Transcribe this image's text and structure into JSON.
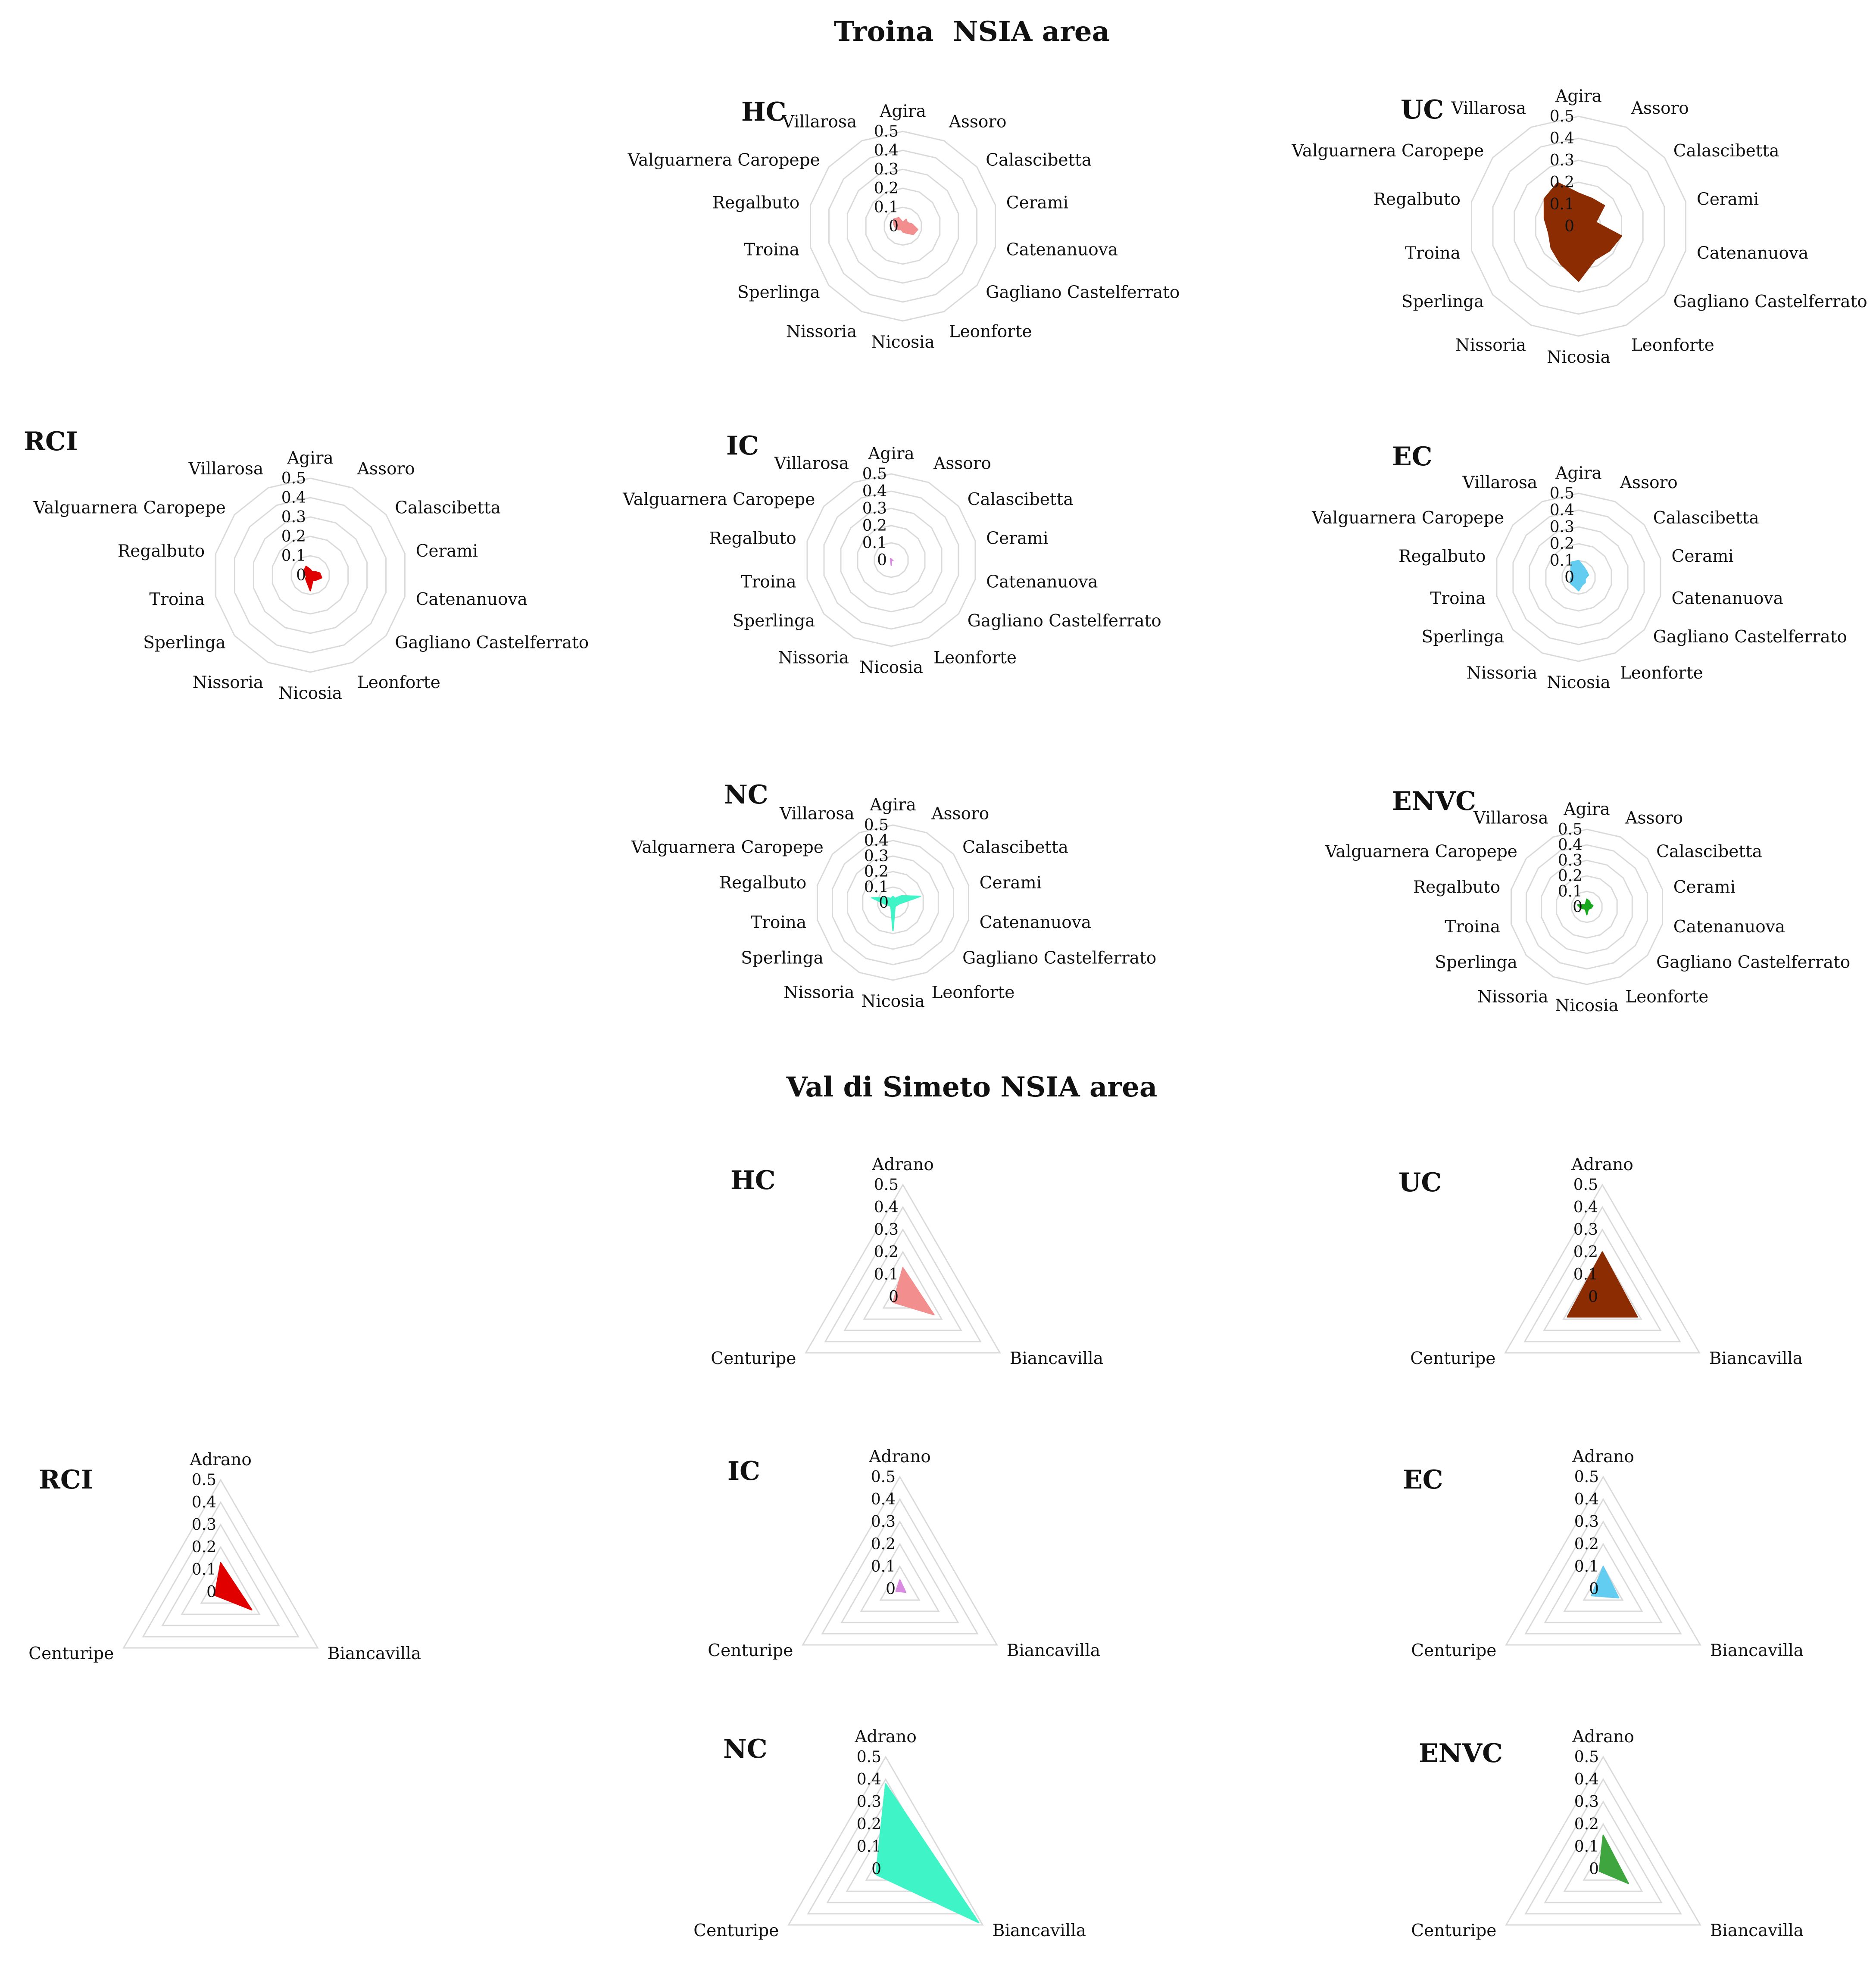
{
  "sections": [
    {
      "key": "troina",
      "title": "Troina  NSIA area",
      "axes": [
        "Agira",
        "Assoro",
        "Calascibetta",
        "Cerami",
        "Catenanuova",
        "Gagliano Castelferrato",
        "Leonforte",
        "Nicosia",
        "Nissoria",
        "Sperlinga",
        "Troina",
        "Regalbuto",
        "Valguarnera Caropepe",
        "Villarosa"
      ]
    },
    {
      "key": "simeto",
      "title": "Val di Simeto NSIA area",
      "axes": [
        "Adrano",
        "Biancavilla",
        "Centuripe"
      ]
    }
  ],
  "tick_values": [
    0,
    0.1,
    0.2,
    0.3,
    0.4,
    0.5
  ],
  "tick_labels": [
    "0",
    "0.1",
    "0.2",
    "0.3",
    "0.4",
    "0.5"
  ],
  "chart_data": [
    {
      "type": "radar",
      "section": "troina",
      "title": "HC",
      "color": "#f28e8e",
      "axes": [
        "Agira",
        "Assoro",
        "Calascibetta",
        "Cerami",
        "Catenanuova",
        "Gagliano Castelferrato",
        "Leonforte",
        "Nicosia",
        "Nissoria",
        "Sperlinga",
        "Troina",
        "Regalbuto",
        "Valguarnera Caropepe",
        "Villarosa"
      ],
      "values": [
        0.02,
        0.04,
        0.03,
        0.05,
        0.08,
        0.07,
        0.04,
        0.03,
        0.02,
        0.03,
        0.04,
        0.05,
        0.06,
        0.05
      ],
      "rmax": 0.5
    },
    {
      "type": "radar",
      "section": "troina",
      "title": "UC",
      "color": "#8b2c03",
      "axes": [
        "Agira",
        "Assoro",
        "Calascibetta",
        "Cerami",
        "Catenanuova",
        "Gagliano Castelferrato",
        "Leonforte",
        "Nicosia",
        "Nissoria",
        "Sperlinga",
        "Troina",
        "Regalbuto",
        "Valguarnera Caropepe",
        "Villarosa"
      ],
      "values": [
        0.15,
        0.14,
        0.15,
        0.08,
        0.2,
        0.18,
        0.17,
        0.25,
        0.19,
        0.16,
        0.14,
        0.16,
        0.2,
        0.22
      ],
      "rmax": 0.5
    },
    {
      "type": "radar",
      "section": "troina",
      "title": "RCI",
      "color": "#e00000",
      "axes": [
        "Agira",
        "Assoro",
        "Calascibetta",
        "Cerami",
        "Catenanuova",
        "Gagliano Castelferrato",
        "Leonforte",
        "Nicosia",
        "Nissoria",
        "Sperlinga",
        "Troina",
        "Regalbuto",
        "Valguarnera Caropepe",
        "Villarosa"
      ],
      "values": [
        0.03,
        0.02,
        0.03,
        0.05,
        0.06,
        0.04,
        0.03,
        0.08,
        0.04,
        0.03,
        0.02,
        0.03,
        0.04,
        0.05
      ],
      "rmax": 0.5
    },
    {
      "type": "radar",
      "section": "troina",
      "title": "IC",
      "color": "#d88be0",
      "axes": [
        "Agira",
        "Assoro",
        "Calascibetta",
        "Cerami",
        "Catenanuova",
        "Gagliano Castelferrato",
        "Leonforte",
        "Nicosia",
        "Nissoria",
        "Sperlinga",
        "Troina",
        "Regalbuto",
        "Valguarnera Caropepe",
        "Villarosa"
      ],
      "values": [
        0.005,
        0.003,
        0.003,
        0.005,
        0.01,
        0.004,
        0.003,
        0.03,
        0.005,
        0.003,
        0.003,
        0.004,
        0.005,
        0.01
      ],
      "rmax": 0.5
    },
    {
      "type": "radar",
      "section": "troina",
      "title": "EC",
      "color": "#62cdf0",
      "axes": [
        "Agira",
        "Assoro",
        "Calascibetta",
        "Cerami",
        "Catenanuova",
        "Gagliano Castelferrato",
        "Leonforte",
        "Nicosia",
        "Nissoria",
        "Sperlinga",
        "Troina",
        "Regalbuto",
        "Valguarnera Caropepe",
        "Villarosa"
      ],
      "values": [
        0.1,
        0.07,
        0.06,
        0.06,
        0.04,
        0.05,
        0.05,
        0.08,
        0.06,
        0.06,
        0.05,
        0.04,
        0.06,
        0.1
      ],
      "rmax": 0.5
    },
    {
      "type": "radar",
      "section": "troina",
      "title": "NC",
      "color": "#3ff5c8",
      "axes": [
        "Agira",
        "Assoro",
        "Calascibetta",
        "Cerami",
        "Catenanuova",
        "Gagliano Castelferrato",
        "Leonforte",
        "Nicosia",
        "Nissoria",
        "Sperlinga",
        "Troina",
        "Regalbuto",
        "Valguarnera Caropepe",
        "Villarosa"
      ],
      "values": [
        0.04,
        0.03,
        0.07,
        0.18,
        0.04,
        0.03,
        0.03,
        0.18,
        0.03,
        0.03,
        0.05,
        0.14,
        0.05,
        0.03
      ],
      "rmax": 0.5
    },
    {
      "type": "radar",
      "section": "troina",
      "title": "ENVC",
      "color": "#19a81e",
      "axes": [
        "Agira",
        "Assoro",
        "Calascibetta",
        "Cerami",
        "Catenanuova",
        "Gagliano Castelferrato",
        "Leonforte",
        "Nicosia",
        "Nissoria",
        "Sperlinga",
        "Troina",
        "Regalbuto",
        "Valguarnera Caropepe",
        "Villarosa"
      ],
      "values": [
        0.05,
        0.04,
        0.03,
        0.04,
        0.03,
        0.02,
        0.02,
        0.05,
        0.02,
        0.02,
        0.04,
        0.06,
        0.02,
        0.02
      ],
      "rmax": 0.5
    },
    {
      "type": "radar",
      "section": "simeto",
      "title": "HC",
      "color": "#f28e8e",
      "axes": [
        "Adrano",
        "Biancavilla",
        "Centuripe"
      ],
      "values": [
        0.13,
        0.16,
        0.05
      ],
      "rmax": 0.5
    },
    {
      "type": "radar",
      "section": "simeto",
      "title": "UC",
      "color": "#8b2c03",
      "axes": [
        "Adrano",
        "Biancavilla",
        "Centuripe"
      ],
      "values": [
        0.2,
        0.18,
        0.18
      ],
      "rmax": 0.5
    },
    {
      "type": "radar",
      "section": "simeto",
      "title": "RCI",
      "color": "#e00000",
      "axes": [
        "Adrano",
        "Biancavilla",
        "Centuripe"
      ],
      "values": [
        0.13,
        0.16,
        0.03
      ],
      "rmax": 0.5
    },
    {
      "type": "radar",
      "section": "simeto",
      "title": "IC",
      "color": "#d88be0",
      "axes": [
        "Adrano",
        "Biancavilla",
        "Centuripe"
      ],
      "values": [
        0.04,
        0.03,
        0.02
      ],
      "rmax": 0.5
    },
    {
      "type": "radar",
      "section": "simeto",
      "title": "EC",
      "color": "#62cdf0",
      "axes": [
        "Adrano",
        "Biancavilla",
        "Centuripe"
      ],
      "values": [
        0.1,
        0.08,
        0.06
      ],
      "rmax": 0.5
    },
    {
      "type": "radar",
      "section": "simeto",
      "title": "NC",
      "color": "#3ff5c8",
      "axes": [
        "Adrano",
        "Biancavilla",
        "Centuripe"
      ],
      "values": [
        0.38,
        0.48,
        0.05
      ],
      "rmax": 0.5
    },
    {
      "type": "radar",
      "section": "simeto",
      "title": "ENVC",
      "color": "#3fa63f",
      "axes": [
        "Adrano",
        "Biancavilla",
        "Centuripe"
      ],
      "values": [
        0.15,
        0.13,
        0.02
      ],
      "rmax": 0.5
    }
  ]
}
